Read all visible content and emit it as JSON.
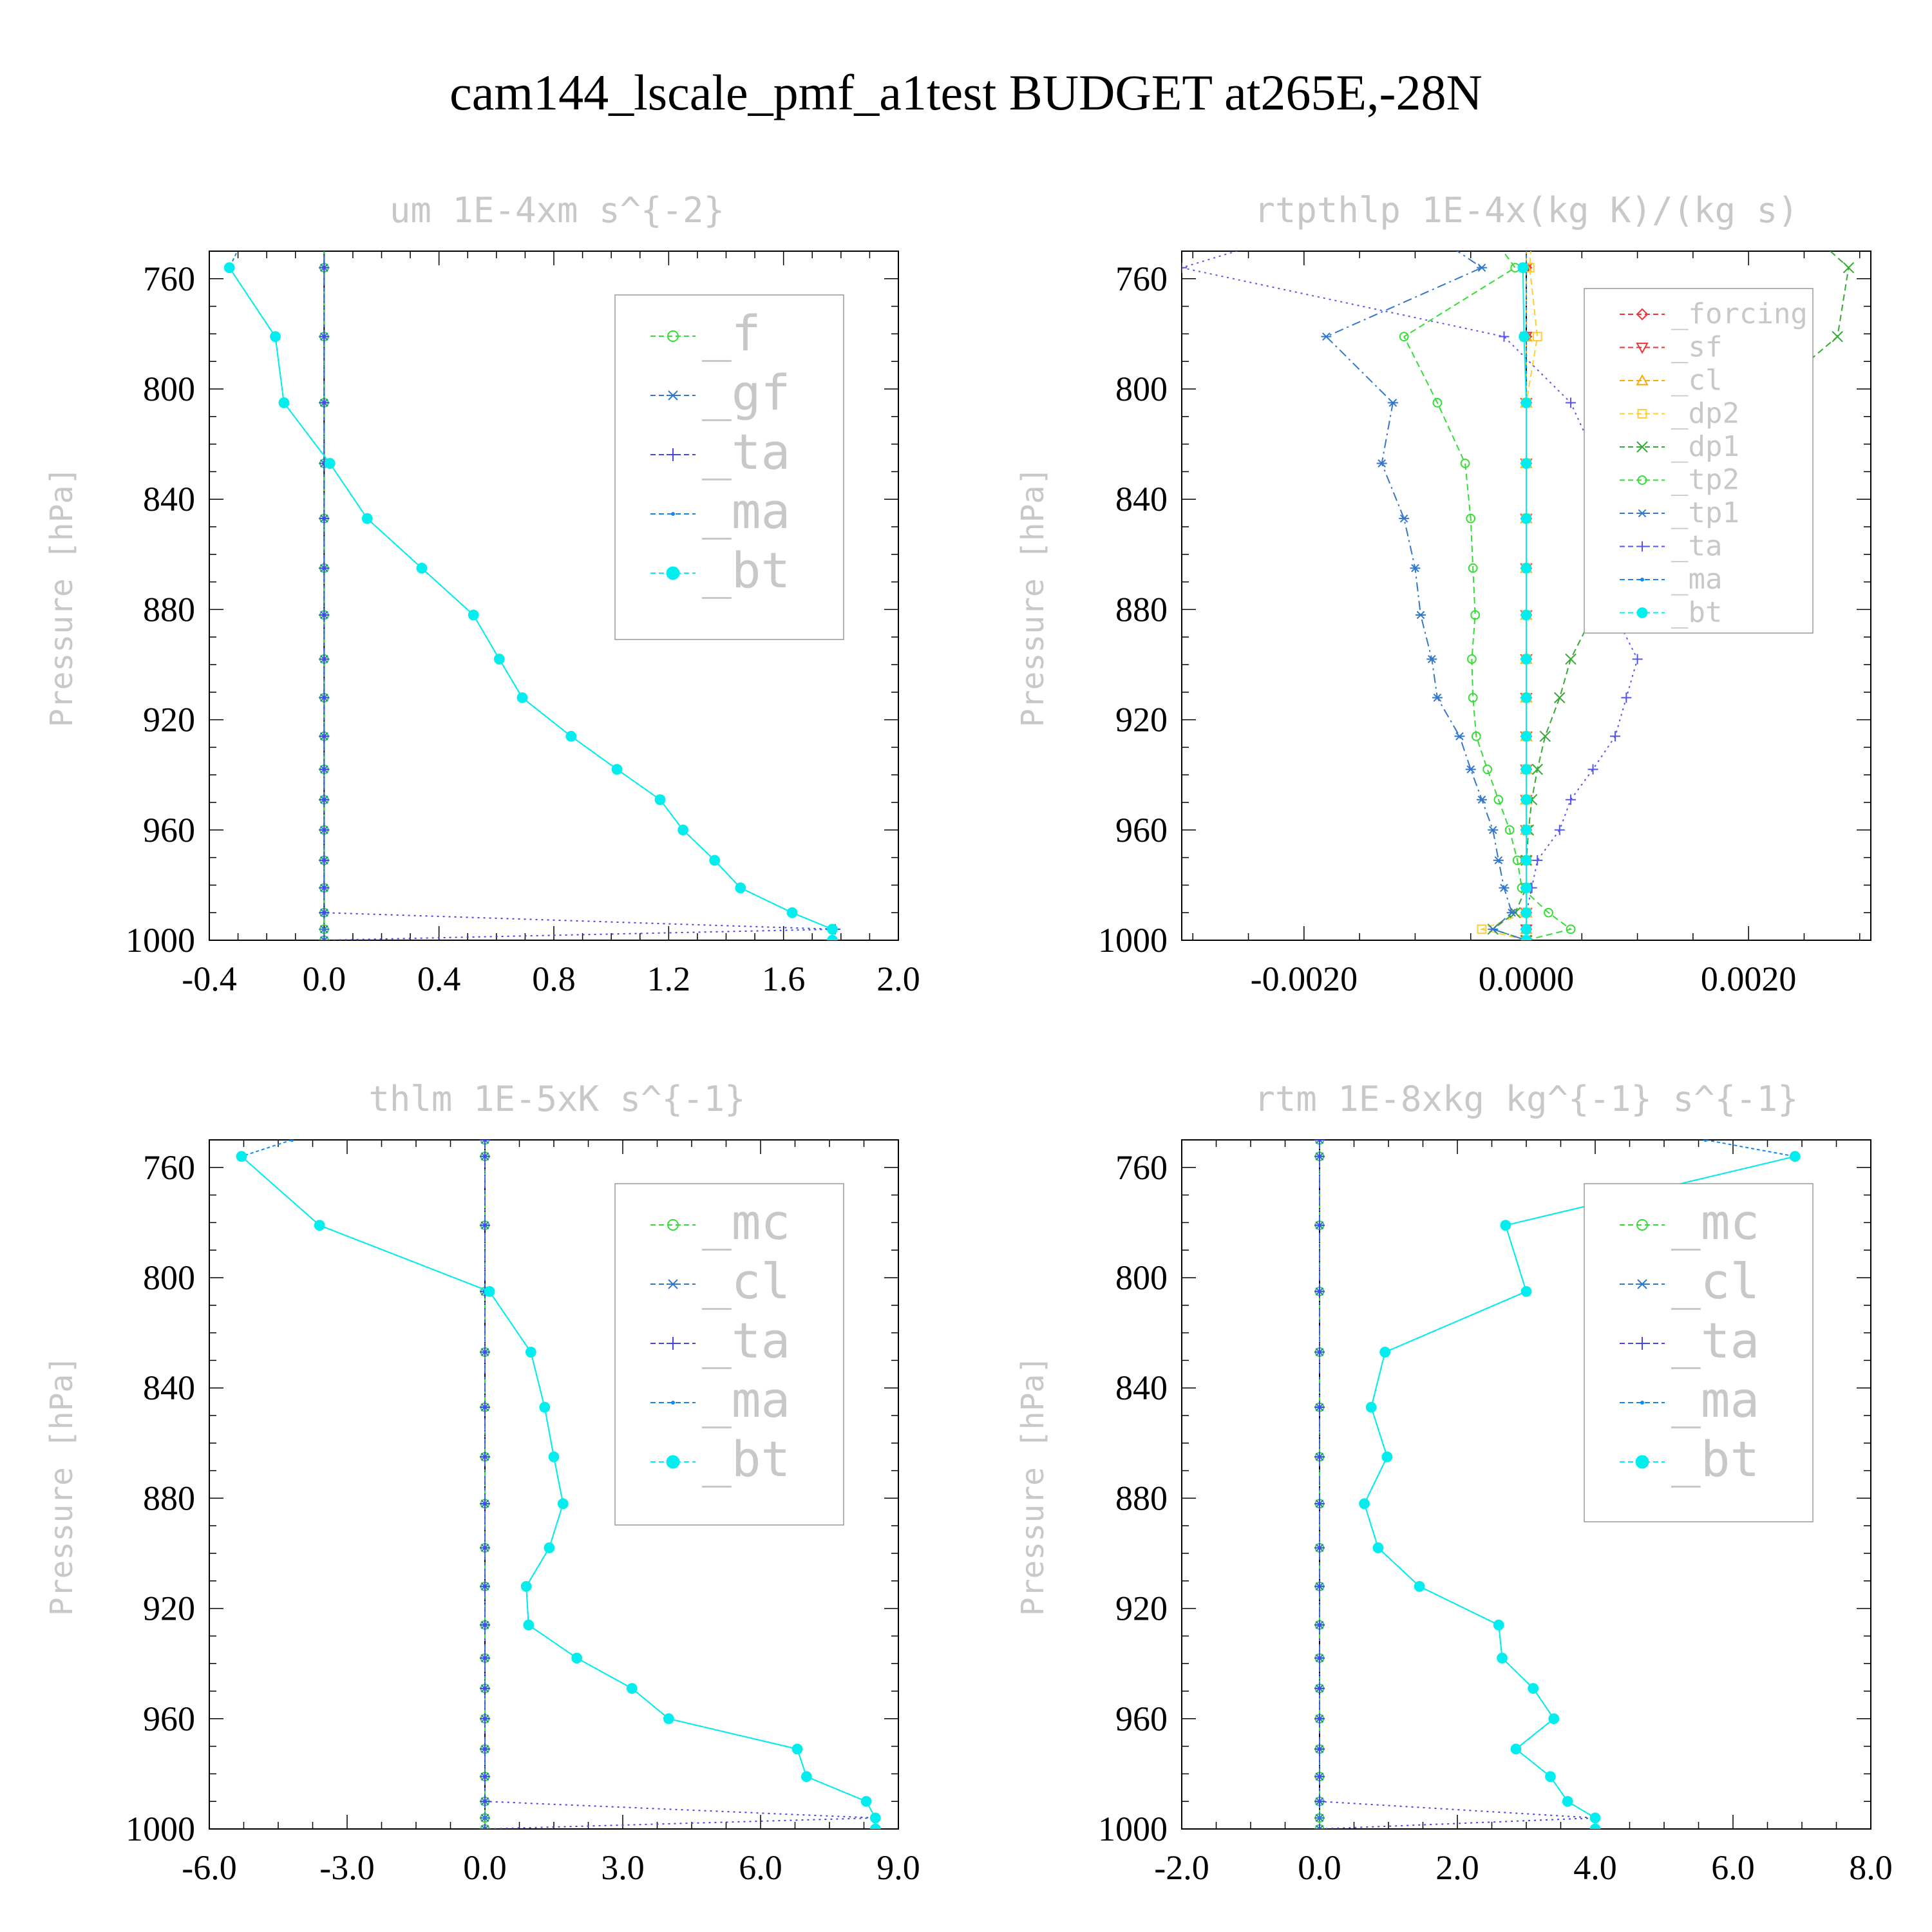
{
  "title": "cam144_lscale_pmf_a1test  BUDGET at265E,-28N",
  "chart_data": [
    {
      "type": "line",
      "title": "um  1E-4xm s^{-2}",
      "ylabel": "Pressure [hPa]",
      "ylim": [
        1000,
        750
      ],
      "xlim": [
        -0.4,
        2.0
      ],
      "xticks": [
        "-0.4",
        "0.0",
        "0.4",
        "0.8",
        "1.2",
        "1.6",
        "2.0"
      ],
      "xtick_values": [
        -0.4,
        0.0,
        0.4,
        0.8,
        1.2,
        1.6,
        2.0
      ],
      "yticks": [
        "760",
        "800",
        "840",
        "880",
        "920",
        "960",
        "1000"
      ],
      "ytick_values": [
        760,
        800,
        840,
        880,
        920,
        960,
        1000
      ],
      "legend": [
        "_f",
        "_gf",
        "_ta",
        "_ma",
        "_bt"
      ],
      "legend_size": "large",
      "legend_position": "top-right",
      "y": [
        745,
        756,
        781,
        805,
        827,
        847,
        865,
        882,
        898,
        912,
        926,
        938,
        949,
        960,
        971,
        981,
        990,
        996,
        1000
      ],
      "series": [
        {
          "name": "_f",
          "color": "#33dd33",
          "style": "circle",
          "values": [
            0,
            0,
            0,
            0,
            0,
            0,
            0,
            0,
            0,
            0,
            0,
            0,
            0,
            0,
            0,
            0,
            0,
            0,
            0
          ]
        },
        {
          "name": "_gf",
          "color": "#3377cc",
          "style": "star",
          "values": [
            0,
            0,
            0,
            0,
            0,
            0,
            0,
            0,
            0,
            0,
            0,
            0,
            0,
            0,
            0,
            0,
            0,
            0,
            0
          ]
        },
        {
          "name": "_ta",
          "color": "#4444ee",
          "style": "plus",
          "values": [
            0,
            0,
            0,
            0,
            0,
            0,
            0,
            0,
            0,
            0,
            0,
            0,
            0,
            0,
            0,
            0,
            0,
            1.78,
            0
          ]
        },
        {
          "name": "_ma",
          "color": "#1188ee",
          "style": "dot",
          "values": [
            -0.28,
            -0.33,
            -0.17,
            -0.14,
            0.02,
            0.15,
            0.34,
            0.52,
            0.61,
            0.69,
            0.86,
            1.02,
            1.17,
            1.25,
            1.36,
            1.45,
            1.63,
            1.77,
            1.77
          ]
        },
        {
          "name": "_bt",
          "color": "#00eeee",
          "style": "bigdot",
          "values": [
            null,
            -0.33,
            -0.17,
            -0.14,
            0.02,
            0.15,
            0.34,
            0.52,
            0.61,
            0.69,
            0.86,
            1.02,
            1.17,
            1.25,
            1.36,
            1.45,
            1.63,
            1.77,
            1.77
          ]
        }
      ]
    },
    {
      "type": "line",
      "title": "rtpthlp  1E-4x(kg K)/(kg s)",
      "ylabel": "Pressure [hPa]",
      "ylim": [
        1000,
        750
      ],
      "xlim": [
        -0.0031,
        0.0031
      ],
      "xticks": [
        "-0.0020",
        "0.0000",
        "0.0020"
      ],
      "xtick_values": [
        -0.002,
        0.0,
        0.002
      ],
      "yticks": [
        "760",
        "800",
        "840",
        "880",
        "920",
        "960",
        "1000"
      ],
      "ytick_values": [
        760,
        800,
        840,
        880,
        920,
        960,
        1000
      ],
      "legend": [
        "_forcing",
        "_sf",
        "_cl",
        "_dp2",
        "_dp1",
        "_tp2",
        "_tp1",
        "_ta",
        "_ma",
        "_bt"
      ],
      "legend_size": "small",
      "legend_position": "top-right",
      "y": [
        745,
        756,
        781,
        805,
        827,
        847,
        865,
        882,
        898,
        912,
        926,
        938,
        949,
        960,
        971,
        981,
        990,
        996,
        1000
      ],
      "series": [
        {
          "name": "_forcing",
          "color": "#ee3333",
          "style": "diamond",
          "values": [
            0,
            0,
            0,
            0,
            0,
            0,
            0,
            0,
            0,
            0,
            0,
            0,
            0,
            0,
            0,
            0,
            0,
            0,
            0
          ]
        },
        {
          "name": "_sf",
          "color": "#ee3333",
          "style": "tridown",
          "values": [
            0,
            0,
            0,
            0,
            0,
            0,
            0,
            0,
            0,
            0,
            0,
            0,
            0,
            0,
            0,
            0,
            0,
            0,
            0
          ]
        },
        {
          "name": "_cl",
          "color": "#ffaa00",
          "style": "triup",
          "values": [
            0,
            0,
            0,
            0,
            0,
            0,
            0,
            0,
            0,
            0,
            0,
            0,
            0,
            0,
            0,
            0,
            0,
            0,
            0
          ]
        },
        {
          "name": "_dp2",
          "color": "#ffcc33",
          "style": "square",
          "values": [
            5e-05,
            3e-05,
            0.0001,
            0,
            0,
            0,
            0,
            0,
            0,
            0,
            0,
            0,
            0,
            0,
            0,
            0,
            0,
            -0.0004,
            0
          ]
        },
        {
          "name": "_dp1",
          "color": "#33aa33",
          "style": "cross",
          "values": [
            0.0026,
            0.0029,
            0.0028,
            0.0021,
            0.0016,
            0.0012,
            0.0009,
            0.0006,
            0.0004,
            0.0003,
            0.00017,
            0.0001,
            5e-05,
            2e-05,
            0,
            0,
            -0.0001,
            -0.0003,
            0
          ]
        },
        {
          "name": "_tp2",
          "color": "#33dd33",
          "style": "circle",
          "values": [
            -0.0003,
            -0.0001,
            -0.0011,
            -0.0008,
            -0.00055,
            -0.0005,
            -0.00048,
            -0.00046,
            -0.00049,
            -0.00048,
            -0.00045,
            -0.00035,
            -0.00025,
            -0.00015,
            -8e-05,
            -4e-05,
            0.0002,
            0.0004,
            0
          ]
        },
        {
          "name": "_tp1",
          "color": "#3377cc",
          "style": "star",
          "values": [
            -0.0008,
            -0.0004,
            -0.0018,
            -0.0012,
            -0.0013,
            -0.0011,
            -0.001,
            -0.00095,
            -0.00085,
            -0.0008,
            -0.0006,
            -0.0005,
            -0.0004,
            -0.0003,
            -0.00025,
            -0.0002,
            -0.00013,
            -0.0003,
            0
          ]
        },
        {
          "name": "_ta",
          "color": "#5555ee",
          "style": "plus",
          "values": [
            -0.0022,
            -0.0031,
            -0.0002,
            0.0004,
            0.00065,
            0.0008,
            0.0007,
            0.0008,
            0.001,
            0.0009,
            0.0008,
            0.0006,
            0.0004,
            0.0003,
            0.0001,
            5e-05,
            0,
            0,
            0
          ]
        },
        {
          "name": "_ma",
          "color": "#1188ee",
          "style": "dot",
          "values": [
            0,
            0,
            0,
            0,
            0,
            0,
            0,
            0,
            0,
            0,
            0,
            0,
            0,
            0,
            0,
            0,
            0,
            0,
            0
          ]
        },
        {
          "name": "_bt",
          "color": "#00eeee",
          "style": "bigdot",
          "values": [
            null,
            -3e-05,
            -2e-05,
            0,
            0,
            0,
            0,
            0,
            0,
            0,
            0,
            0,
            0,
            0,
            0,
            0,
            0,
            0,
            0
          ]
        }
      ]
    },
    {
      "type": "line",
      "title": "thlm  1E-5xK s^{-1}",
      "ylabel": "Pressure [hPa]",
      "ylim": [
        1000,
        750
      ],
      "xlim": [
        -6.0,
        9.0
      ],
      "xticks": [
        "-6.0",
        "-3.0",
        "0.0",
        "3.0",
        "6.0",
        "9.0"
      ],
      "xtick_values": [
        -6.0,
        -3.0,
        0.0,
        3.0,
        6.0,
        9.0
      ],
      "yticks": [
        "760",
        "800",
        "840",
        "880",
        "920",
        "960",
        "1000"
      ],
      "ytick_values": [
        760,
        800,
        840,
        880,
        920,
        960,
        1000
      ],
      "legend": [
        "_mc",
        "_cl",
        "_ta",
        "_ma",
        "_bt"
      ],
      "legend_size": "large",
      "legend_position": "top-right",
      "y": [
        750,
        756,
        781,
        805,
        827,
        847,
        865,
        882,
        898,
        912,
        926,
        938,
        949,
        960,
        971,
        981,
        990,
        996,
        1000
      ],
      "series": [
        {
          "name": "_mc",
          "color": "#33dd33",
          "style": "circle",
          "values": [
            0,
            0,
            0,
            0,
            0,
            0,
            0,
            0,
            0,
            0,
            0,
            0,
            0,
            0,
            0,
            0,
            0,
            0,
            0
          ]
        },
        {
          "name": "_cl",
          "color": "#3377cc",
          "style": "star",
          "values": [
            0,
            0,
            0,
            0,
            0,
            0,
            0,
            0,
            0,
            0,
            0,
            0,
            0,
            0,
            0,
            0,
            0,
            0,
            0
          ]
        },
        {
          "name": "_ta",
          "color": "#4444ee",
          "style": "plus",
          "values": [
            0,
            0,
            0,
            0,
            0,
            0,
            0,
            0,
            0,
            0,
            0,
            0,
            0,
            0,
            0,
            0,
            0,
            8.5,
            0
          ]
        },
        {
          "name": "_ma",
          "color": "#1188ee",
          "style": "dot",
          "values": [
            -4.2,
            -5.3,
            -3.6,
            0.1,
            1.0,
            1.3,
            1.5,
            1.7,
            1.4,
            0.9,
            0.95,
            2.0,
            3.2,
            4.0,
            6.8,
            7.0,
            8.3,
            8.5,
            8.5
          ]
        },
        {
          "name": "_bt",
          "color": "#00eeee",
          "style": "bigdot",
          "values": [
            null,
            -5.3,
            -3.6,
            0.1,
            1.0,
            1.3,
            1.5,
            1.7,
            1.4,
            0.9,
            0.95,
            2.0,
            3.2,
            4.0,
            6.8,
            7.0,
            8.3,
            8.5,
            8.5
          ]
        }
      ]
    },
    {
      "type": "line",
      "title": "rtm  1E-8xkg kg^{-1} s^{-1}",
      "ylabel": "Pressure [hPa]",
      "ylim": [
        1000,
        750
      ],
      "xlim": [
        -2.0,
        8.0
      ],
      "xticks": [
        "-2.0",
        "0.0",
        "2.0",
        "4.0",
        "6.0",
        "8.0"
      ],
      "xtick_values": [
        -2.0,
        0.0,
        2.0,
        4.0,
        6.0,
        8.0
      ],
      "yticks": [
        "760",
        "800",
        "840",
        "880",
        "920",
        "960",
        "1000"
      ],
      "ytick_values": [
        760,
        800,
        840,
        880,
        920,
        960,
        1000
      ],
      "legend": [
        "_mc",
        "_cl",
        "_ta",
        "_ma",
        "_bt"
      ],
      "legend_size": "large",
      "legend_position": "top-right",
      "y": [
        750,
        756,
        781,
        805,
        827,
        847,
        865,
        882,
        898,
        912,
        926,
        938,
        949,
        960,
        971,
        981,
        990,
        996,
        1000
      ],
      "series": [
        {
          "name": "_mc",
          "color": "#33dd33",
          "style": "circle",
          "values": [
            0,
            0,
            0,
            0,
            0,
            0,
            0,
            0,
            0,
            0,
            0,
            0,
            0,
            0,
            0,
            0,
            0,
            0,
            0
          ]
        },
        {
          "name": "_cl",
          "color": "#3377cc",
          "style": "star",
          "values": [
            0,
            0,
            0,
            0,
            0,
            0,
            0,
            0,
            0,
            0,
            0,
            0,
            0,
            0,
            0,
            0,
            0,
            0,
            0
          ]
        },
        {
          "name": "_ta",
          "color": "#4444ee",
          "style": "plus",
          "values": [
            0,
            0,
            0,
            0,
            0,
            0,
            0,
            0,
            0,
            0,
            0,
            0,
            0,
            0,
            0,
            0,
            0,
            4.0,
            0
          ]
        },
        {
          "name": "_ma",
          "color": "#1188ee",
          "style": "dot",
          "values": [
            5.6,
            6.9,
            2.7,
            3.0,
            0.95,
            0.75,
            0.98,
            0.65,
            0.85,
            1.45,
            2.6,
            2.65,
            3.1,
            3.4,
            2.85,
            3.35,
            3.6,
            4.0,
            4.0
          ]
        },
        {
          "name": "_bt",
          "color": "#00eeee",
          "style": "bigdot",
          "values": [
            null,
            6.9,
            2.7,
            3.0,
            0.95,
            0.75,
            0.98,
            0.65,
            0.85,
            1.45,
            2.6,
            2.65,
            3.1,
            3.4,
            2.85,
            3.35,
            3.6,
            4.0,
            4.0
          ]
        }
      ]
    }
  ]
}
